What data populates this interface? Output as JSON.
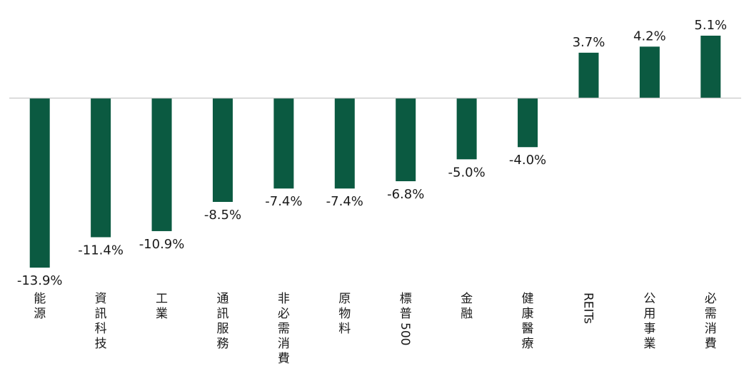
{
  "chart_data": {
    "type": "bar",
    "categories": [
      "能源",
      "資訊科技",
      "工業",
      "通訊服務",
      "非必需消費",
      "原物料",
      "標普500",
      "金融",
      "健康醫療",
      "REITs",
      "公用事業",
      "必需消費"
    ],
    "values": [
      -13.9,
      -11.4,
      -10.9,
      -8.5,
      -7.4,
      -7.4,
      -6.8,
      -5.0,
      -4.0,
      3.7,
      4.2,
      5.1
    ],
    "data_labels": [
      "-13.9%",
      "-11.4%",
      "-10.9%",
      "-8.5%",
      "-7.4%",
      "-7.4%",
      "-6.8%",
      "-5.0%",
      "-4.0%",
      "3.7%",
      "4.2%",
      "5.1%"
    ],
    "title": "",
    "xlabel": "",
    "ylabel": "",
    "ylim": [
      -13.9,
      5.1
    ],
    "grid": false,
    "legend": "none",
    "category_label_orientation": "vertical",
    "colors": {
      "bar": "#0b5a41",
      "axis": "#c8c8c8",
      "text": "#1a1a1a"
    }
  }
}
